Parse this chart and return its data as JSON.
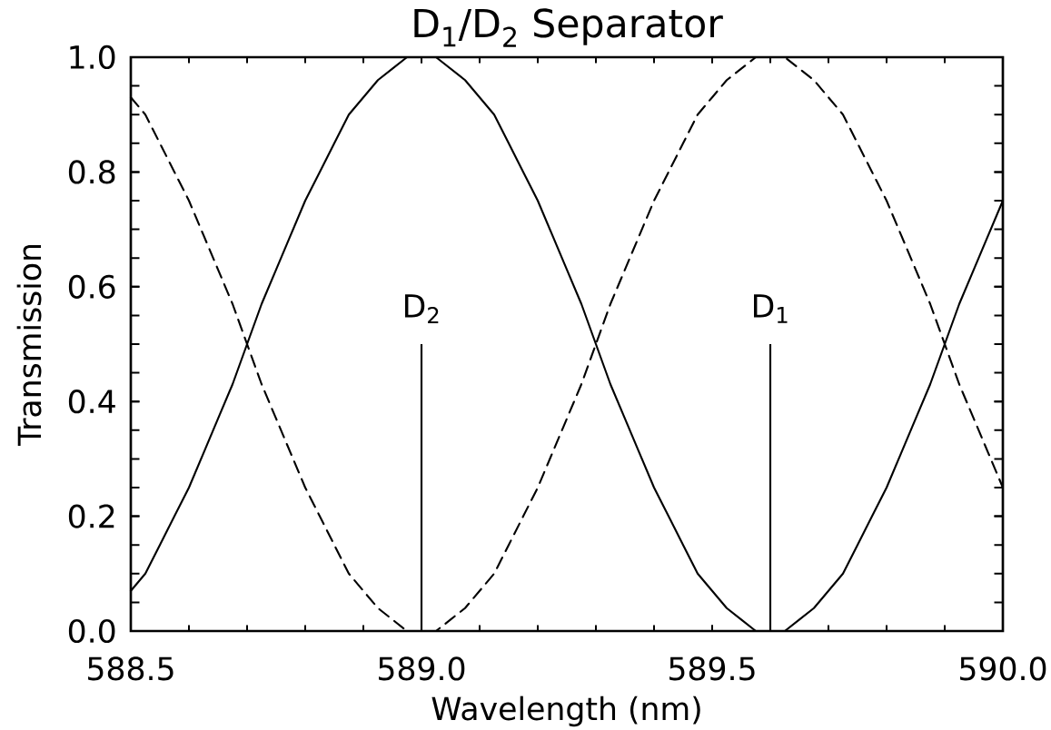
{
  "chart_data": {
    "type": "line",
    "title": "D$_{1}$/D$_{2}$ Separator",
    "xlabel": "Wavelength (nm)",
    "ylabel": "Transmission",
    "xlim": [
      588.5,
      590.0
    ],
    "ylim": [
      0,
      1.0
    ],
    "xticks": [
      588.5,
      {
        "value": 588.6,
        "label": null
      },
      {
        "value": 588.7,
        "label": null
      },
      {
        "value": 588.8,
        "label": null
      },
      {
        "value": 588.9,
        "label": null
      },
      {
        "value": 589.0,
        "label": "589.0"
      },
      {
        "value": 589.1,
        "label": null
      },
      {
        "value": 589.2,
        "label": null
      },
      {
        "value": 589.3,
        "label": null
      },
      {
        "value": 589.4,
        "label": null
      },
      589.5,
      {
        "value": 589.6,
        "label": null
      },
      {
        "value": 589.7,
        "label": null
      },
      {
        "value": 589.8,
        "label": null
      },
      {
        "value": 589.9,
        "label": null
      },
      {
        "value": 590.0,
        "label": "590.0"
      }
    ],
    "yticks": [
      {
        "value": 0,
        "label": "0.0"
      },
      {
        "value": 0.05,
        "label": null
      },
      {
        "value": 0.1,
        "label": null
      },
      {
        "value": 0.15,
        "label": null
      },
      0.2,
      {
        "value": 0.25,
        "label": null
      },
      {
        "value": 0.3,
        "label": null
      },
      {
        "value": 0.35,
        "label": null
      },
      0.4,
      {
        "value": 0.45,
        "label": null
      },
      {
        "value": 0.5,
        "label": null
      },
      {
        "value": 0.55,
        "label": null
      },
      0.6,
      {
        "value": 0.65,
        "label": null
      },
      {
        "value": 0.7,
        "label": null
      },
      {
        "value": 0.75,
        "label": null
      },
      0.8,
      {
        "value": 0.85,
        "label": null
      },
      {
        "value": 0.9,
        "label": null
      },
      {
        "value": 0.95,
        "label": null
      },
      {
        "value": 1.0,
        "label": "1.0"
      }
    ],
    "x": [
      588.5,
      588.525,
      588.55,
      588.575,
      588.6,
      588.625,
      588.65,
      588.675,
      588.7,
      588.725,
      588.75,
      588.775,
      588.8,
      588.825,
      588.85,
      588.875,
      588.9,
      588.925,
      588.95,
      588.975,
      589.0,
      589.025,
      589.05,
      589.075,
      589.1,
      589.125,
      589.15,
      589.175,
      589.2,
      589.225,
      589.25,
      589.275,
      589.3,
      589.325,
      589.35,
      589.375,
      589.4,
      589.425,
      589.45,
      589.475,
      589.5,
      589.525,
      589.55,
      589.575,
      589.6,
      589.625,
      589.65,
      589.675,
      589.7,
      589.725,
      589.75,
      589.775,
      589.8,
      589.825,
      589.85,
      589.875,
      589.9,
      589.925,
      589.95,
      589.975,
      590.0
    ],
    "series": [
      {
        "color": "#000000",
        "line_style": "solid",
        "values": [
          0.07,
          0.1,
          0.15,
          0.2,
          0.25,
          0.31,
          0.37,
          0.43,
          0.5,
          0.57,
          0.63,
          0.69,
          0.75,
          0.8,
          0.85,
          0.9,
          0.93,
          0.96,
          0.98,
          1.0,
          1.0,
          1.0,
          0.98,
          0.96,
          0.93,
          0.9,
          0.85,
          0.8,
          0.75,
          0.69,
          0.63,
          0.57,
          0.5,
          0.43,
          0.37,
          0.31,
          0.25,
          0.2,
          0.15,
          0.1,
          0.07,
          0.04,
          0.02,
          0.0,
          0,
          0.0,
          0.02,
          0.04,
          0.07,
          0.1,
          0.15,
          0.2,
          0.25,
          0.31,
          0.37,
          0.43,
          0.5,
          0.57,
          0.63,
          0.69,
          0.75
        ]
      },
      {
        "color": "#000000",
        "line_style": "dashed",
        "values": [
          0.93,
          0.9,
          0.85,
          0.8,
          0.75,
          0.69,
          0.63,
          0.57,
          0.5,
          0.43,
          0.37,
          0.31,
          0.25,
          0.2,
          0.15,
          0.1,
          0.07,
          0.04,
          0.02,
          0.0,
          0,
          0.0,
          0.02,
          0.04,
          0.07,
          0.1,
          0.15,
          0.2,
          0.25,
          0.31,
          0.37,
          0.43,
          0.5,
          0.57,
          0.63,
          0.69,
          0.75,
          0.8,
          0.85,
          0.9,
          0.93,
          0.96,
          0.98,
          1.0,
          1.0,
          1.0,
          0.98,
          0.96,
          0.93,
          0.9,
          0.85,
          0.8,
          0.75,
          0.69,
          0.63,
          0.57,
          0.5,
          0.43,
          0.37,
          0.31,
          0.25
        ]
      },
      {
        "type": "bar",
        "color": "#000000",
        "x": [
          589.0,
          589.6
        ],
        "values": [
          0.5,
          0.5
        ]
      }
    ],
    "annotations": [
      {
        "text": "D$_{2}$",
        "x": 589.0,
        "y": 0.5
      },
      {
        "text": "D$_{1}$",
        "x": 589.6,
        "y": 0.5
      }
    ]
  }
}
